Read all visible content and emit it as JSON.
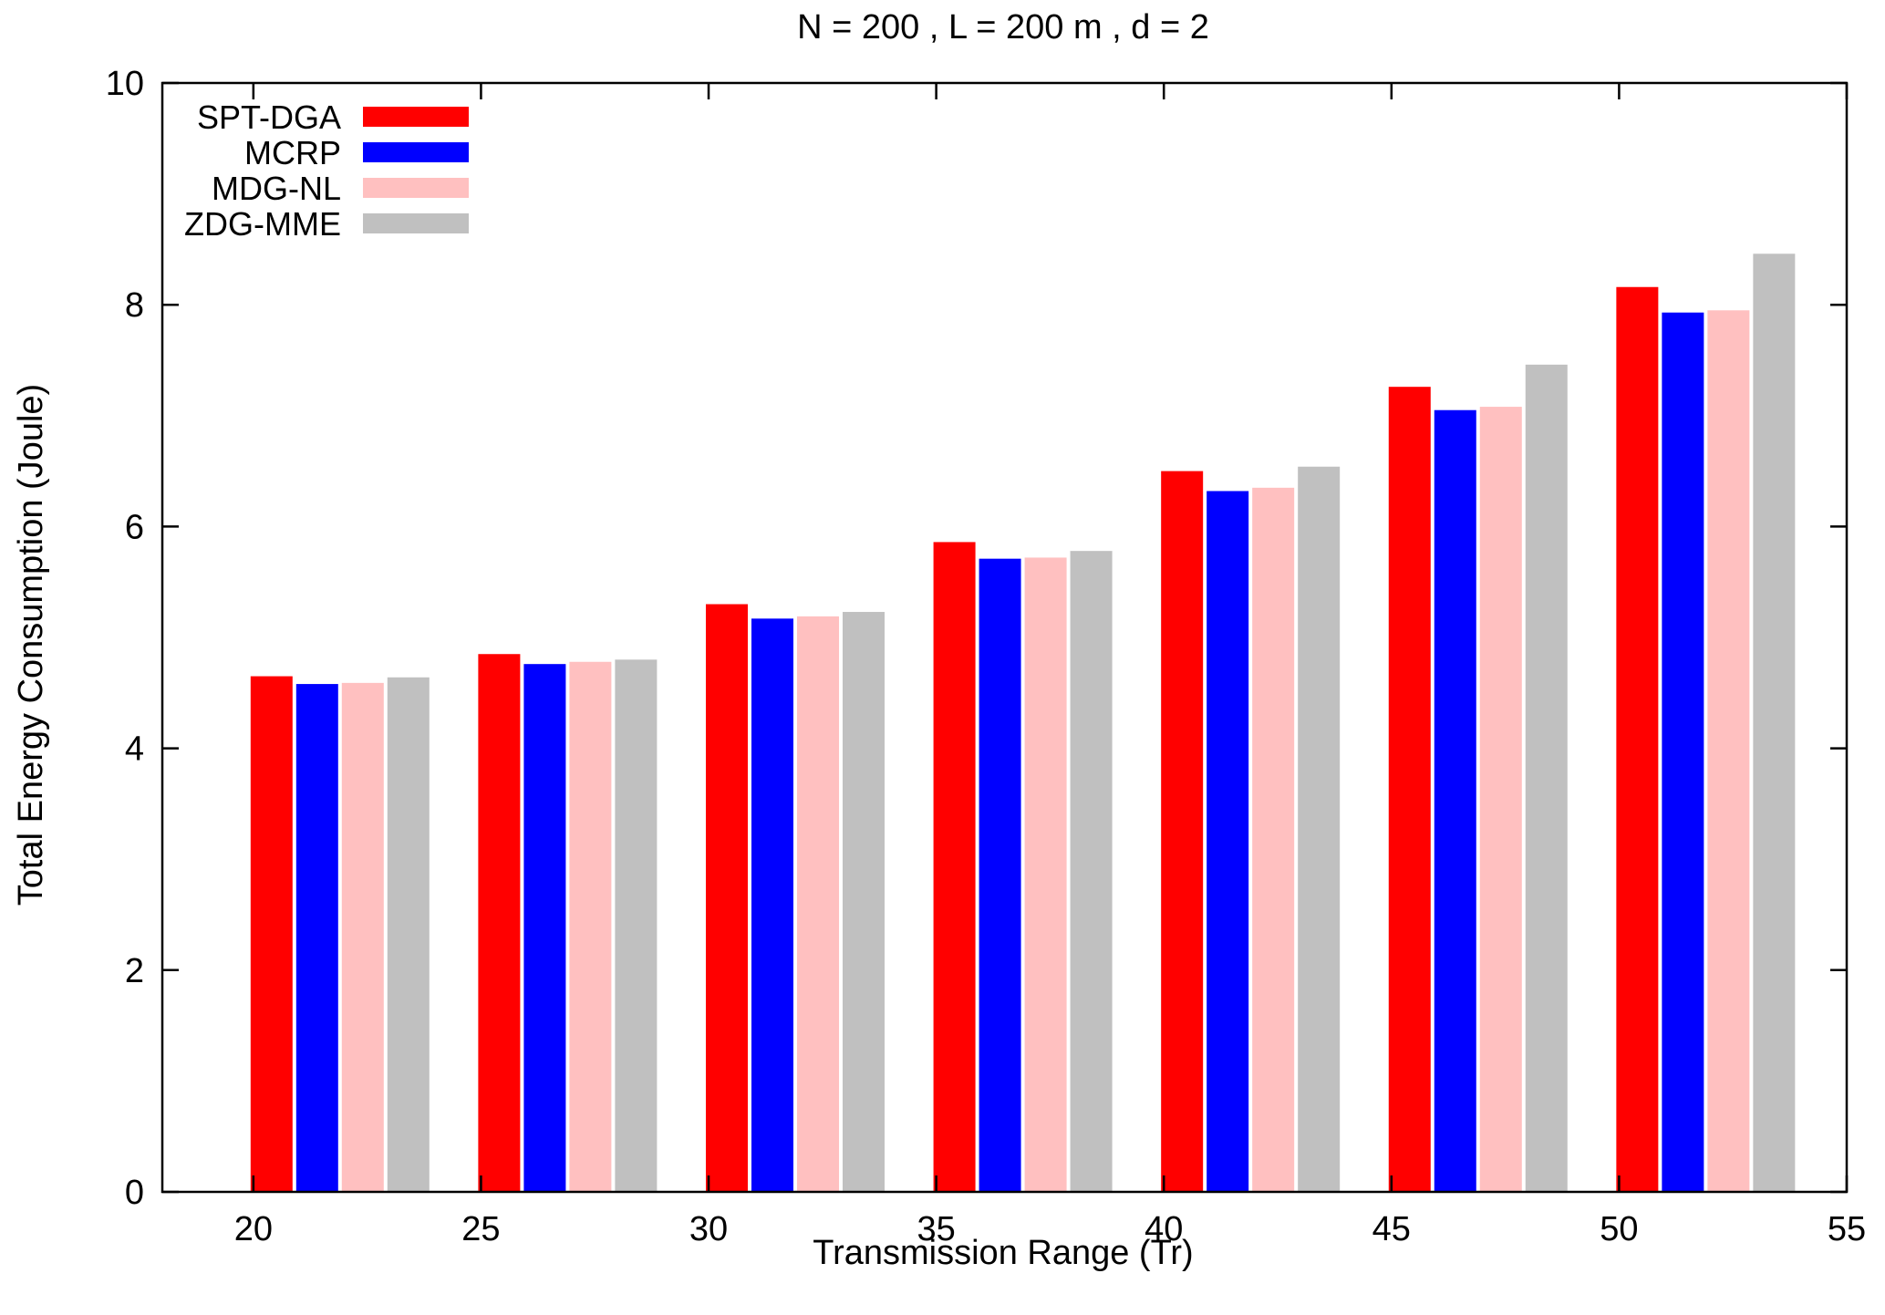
{
  "chart_data": {
    "type": "bar",
    "title": "N = 200 , L = 200 m , d = 2",
    "xlabel": "Transmission Range (Tr)",
    "ylabel": "Total Energy Consumption (Joule)",
    "x_categories": [
      20,
      25,
      30,
      35,
      40,
      45,
      50
    ],
    "xlim": [
      18,
      55
    ],
    "ylim": [
      0,
      10
    ],
    "x_ticks": [
      "20",
      "25",
      "30",
      "35",
      "40",
      "45",
      "50",
      "55"
    ],
    "y_ticks": [
      "0",
      "2",
      "4",
      "6",
      "8",
      "10"
    ],
    "legend_position": "top-left",
    "grid": false,
    "series": [
      {
        "name": "SPT-DGA",
        "color": "#ff0000",
        "values": [
          4.65,
          4.85,
          5.3,
          5.86,
          6.5,
          7.26,
          8.16
        ]
      },
      {
        "name": "MCRP",
        "color": "#0000ff",
        "values": [
          4.58,
          4.76,
          5.17,
          5.71,
          6.32,
          7.05,
          7.93
        ]
      },
      {
        "name": "MDG-NL",
        "color": "#ffc0c0",
        "values": [
          4.59,
          4.78,
          5.19,
          5.72,
          6.35,
          7.08,
          7.95
        ]
      },
      {
        "name": "ZDG-MME",
        "color": "#c0c0c0",
        "values": [
          4.64,
          4.8,
          5.23,
          5.78,
          6.54,
          7.46,
          8.46
        ]
      }
    ]
  }
}
